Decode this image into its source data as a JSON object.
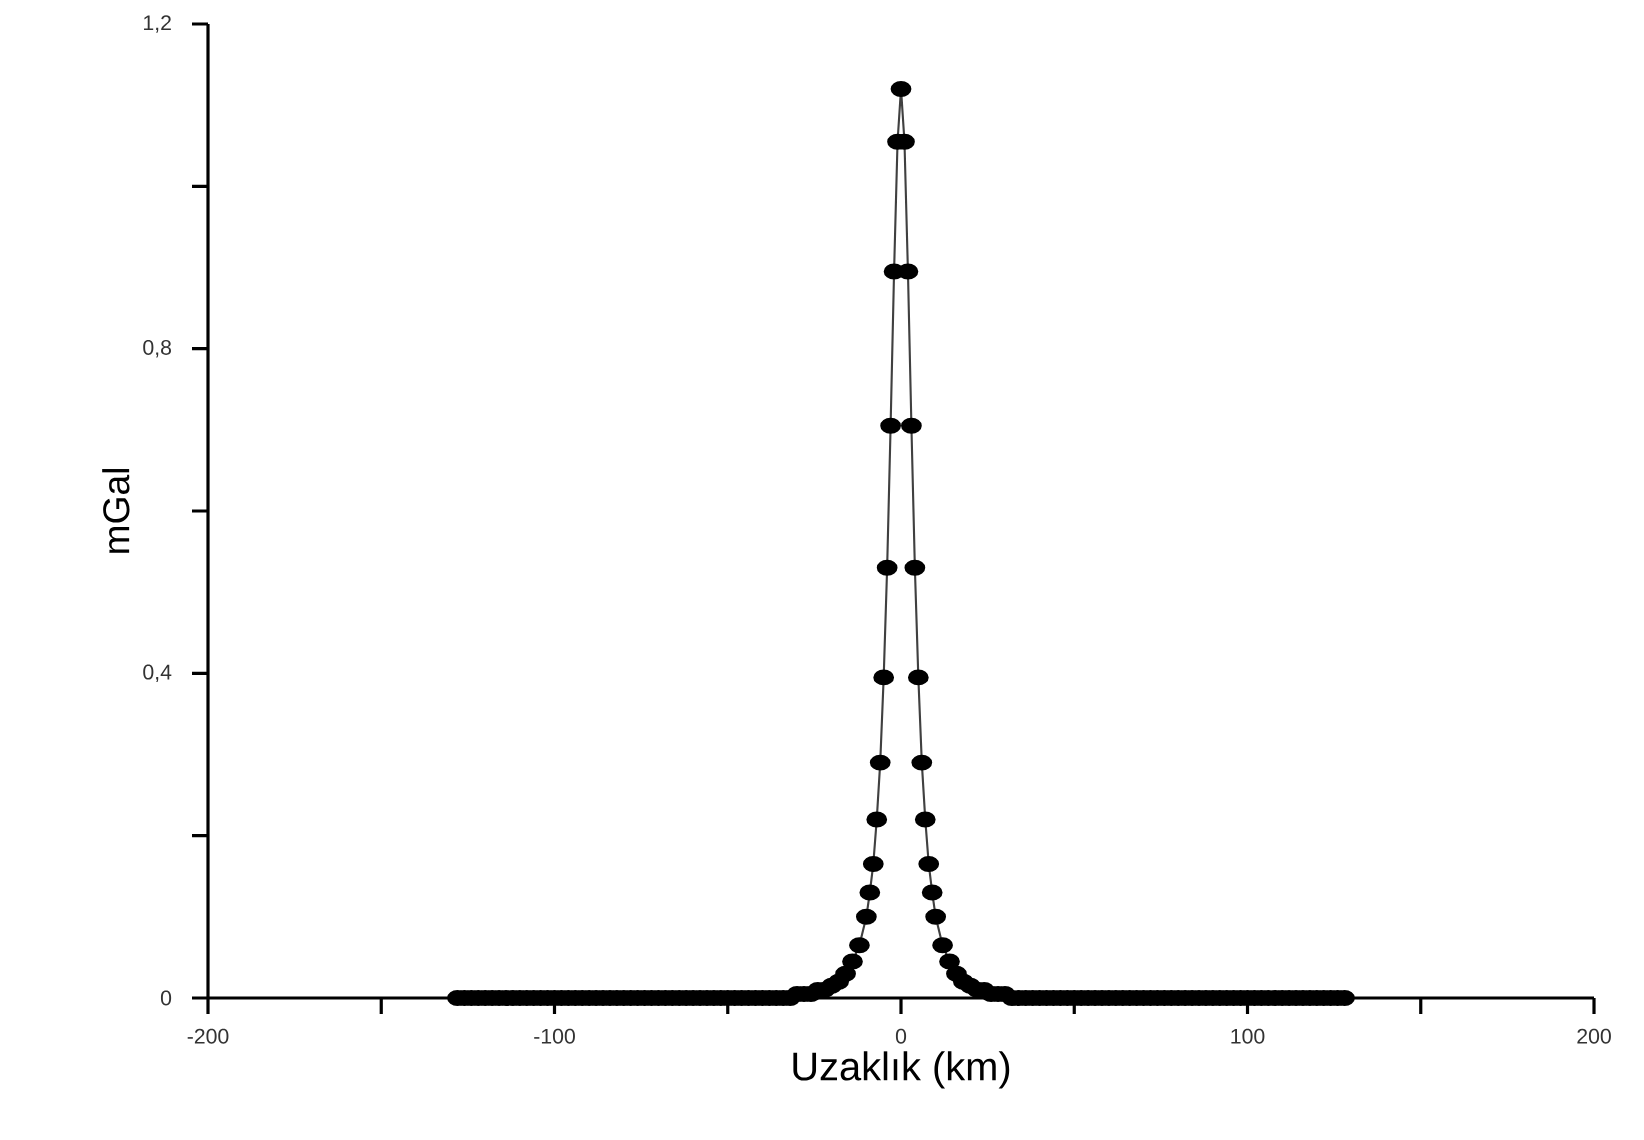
{
  "chart_data": {
    "type": "line",
    "xlabel": "Uzaklık (km)",
    "ylabel": "mGal",
    "x": [
      -128,
      -126,
      -124,
      -122,
      -120,
      -118,
      -116,
      -114,
      -112,
      -110,
      -108,
      -106,
      -104,
      -102,
      -100,
      -98,
      -96,
      -94,
      -92,
      -90,
      -88,
      -86,
      -84,
      -82,
      -80,
      -78,
      -76,
      -74,
      -72,
      -70,
      -68,
      -66,
      -64,
      -62,
      -60,
      -58,
      -56,
      -54,
      -52,
      -50,
      -48,
      -46,
      -44,
      -42,
      -40,
      -38,
      -36,
      -34,
      -32,
      -30,
      -28,
      -26,
      -24,
      -22,
      -20,
      -18,
      -16,
      -14,
      -12,
      -10,
      -9,
      -8,
      -7,
      -6,
      -5,
      -4,
      -3,
      -2,
      -1,
      0,
      1,
      2,
      3,
      4,
      5,
      6,
      7,
      8,
      9,
      10,
      12,
      14,
      16,
      18,
      20,
      22,
      24,
      26,
      28,
      30,
      32,
      34,
      36,
      38,
      40,
      42,
      44,
      46,
      48,
      50,
      52,
      54,
      56,
      58,
      60,
      62,
      64,
      66,
      68,
      70,
      72,
      74,
      76,
      78,
      80,
      82,
      84,
      86,
      88,
      90,
      92,
      94,
      96,
      98,
      100,
      102,
      104,
      106,
      108,
      110,
      112,
      114,
      116,
      118,
      120,
      122,
      124,
      126,
      128
    ],
    "series": [
      {
        "color": "#000000",
        "values": [
          0,
          0,
          0,
          0,
          0,
          0,
          0,
          0,
          0,
          0,
          0,
          0,
          0,
          0,
          0,
          0,
          0,
          0,
          0,
          0,
          0,
          0,
          0,
          0,
          0,
          0,
          0,
          0,
          0,
          0,
          0,
          0,
          0,
          0,
          0,
          0,
          0,
          0,
          0,
          0,
          0,
          0,
          0,
          0,
          0,
          0,
          0,
          0,
          0,
          0.005,
          0.005,
          0.005,
          0.01,
          0.01,
          0.015,
          0.02,
          0.03,
          0.045,
          0.065,
          0.1,
          0.13,
          0.165,
          0.22,
          0.29,
          0.395,
          0.53,
          0.705,
          0.895,
          1.055,
          1.12,
          1.055,
          0.895,
          0.705,
          0.53,
          0.395,
          0.29,
          0.22,
          0.165,
          0.13,
          0.1,
          0.065,
          0.045,
          0.03,
          0.02,
          0.015,
          0.01,
          0.01,
          0.005,
          0.005,
          0.005,
          0,
          0,
          0,
          0,
          0,
          0,
          0,
          0,
          0,
          0,
          0,
          0,
          0,
          0,
          0,
          0,
          0,
          0,
          0,
          0,
          0,
          0,
          0,
          0,
          0,
          0,
          0,
          0,
          0,
          0,
          0,
          0,
          0,
          0,
          0,
          0,
          0,
          0,
          0,
          0,
          0,
          0,
          0,
          0,
          0,
          0,
          0,
          0,
          0
        ]
      }
    ],
    "xlim": [
      -200,
      200
    ],
    "xticks": [
      -200,
      {
        "value": -150,
        "label": null
      },
      -100,
      {
        "value": -50,
        "label": null
      },
      0,
      {
        "value": 50,
        "label": null
      },
      100,
      {
        "value": 150,
        "label": null
      },
      200
    ],
    "ylim": [
      0,
      1.2
    ],
    "yticks": [
      0,
      {
        "value": 0.2,
        "label": null
      },
      {
        "value": 0.4,
        "label": "0,4"
      },
      {
        "value": 0.6,
        "label": null
      },
      {
        "value": 0.8,
        "label": "0,8"
      },
      {
        "value": 1.0,
        "label": null
      },
      {
        "value": 1.2,
        "label": "1,2"
      }
    ],
    "marker": "circle",
    "line_style": "solid"
  }
}
